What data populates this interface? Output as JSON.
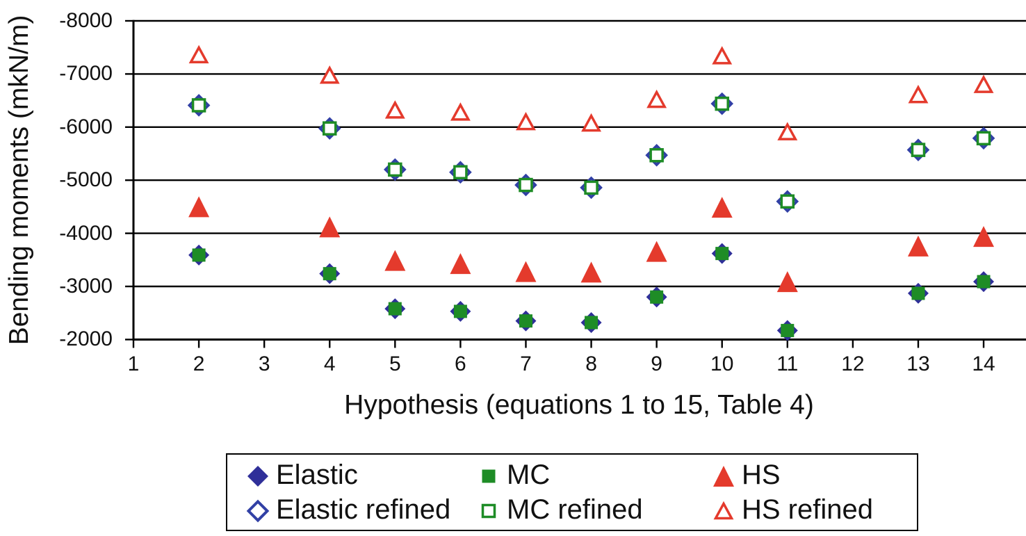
{
  "page": {
    "background": "#ffffff"
  },
  "y_axis": {
    "title": "Bending moments (mkN/m)",
    "tick_labels": [
      "-8000",
      "-7000",
      "-6000",
      "-5000",
      "-4000",
      "-3000",
      "-2000"
    ]
  },
  "x_axis": {
    "title": "Hypothesis (equations 1 to 15, Table 4)",
    "tick_labels": [
      "1",
      "2",
      "3",
      "4",
      "5",
      "6",
      "7",
      "8",
      "9",
      "10",
      "11",
      "12",
      "13",
      "14"
    ]
  },
  "legend": {
    "items": [
      {
        "label": "Elastic"
      },
      {
        "label": "MC"
      },
      {
        "label": "HS"
      },
      {
        "label": "Elastic refined"
      },
      {
        "label": "MC refined"
      },
      {
        "label": "HS refined"
      }
    ]
  },
  "chart_data": {
    "type": "scatter",
    "title": "",
    "xlabel": "Hypothesis (equations 1 to 15, Table 4)",
    "ylabel": "Bending moments (mkN/m)",
    "x_ticks": [
      1,
      2,
      3,
      4,
      5,
      6,
      7,
      8,
      9,
      10,
      11,
      12,
      13,
      14
    ],
    "y_ticks": [
      -8000,
      -7000,
      -6000,
      -5000,
      -4000,
      -3000,
      -2000
    ],
    "ylim": [
      -8000,
      -2000
    ],
    "y_axis_note": "negative values increase upward (-8000 at top, -2000 at bottom)",
    "grid": "horizontal",
    "legend_position": "bottom",
    "x": [
      2,
      4,
      5,
      6,
      7,
      8,
      9,
      10,
      11,
      13,
      14
    ],
    "series": [
      {
        "name": "Elastic",
        "marker": "diamond",
        "fill": "solid",
        "color": "#2F2F99",
        "values": [
          -3590,
          -3240,
          -2580,
          -2530,
          -2350,
          -2320,
          -2800,
          -3620,
          -2170,
          -2870,
          -3090
        ]
      },
      {
        "name": "MC",
        "marker": "square",
        "fill": "solid",
        "color": "#1E8C26",
        "values": [
          -3590,
          -3240,
          -2580,
          -2530,
          -2350,
          -2320,
          -2800,
          -3620,
          -2170,
          -2870,
          -3090
        ]
      },
      {
        "name": "HS",
        "marker": "triangle",
        "fill": "solid",
        "color": "#E43A2C",
        "values": [
          -4500,
          -4120,
          -3490,
          -3430,
          -3280,
          -3270,
          -3660,
          -4490,
          -3090,
          -3760,
          -3940
        ]
      },
      {
        "name": "Elastic refined",
        "marker": "diamond",
        "fill": "hollow",
        "color": "#3140A5",
        "values": [
          -6410,
          -5975,
          -5200,
          -5150,
          -4910,
          -4860,
          -5470,
          -6440,
          -4600,
          -5570,
          -5790
        ]
      },
      {
        "name": "MC refined",
        "marker": "square",
        "fill": "hollow",
        "color": "#1E8C26",
        "values": [
          -6410,
          -5975,
          -5200,
          -5150,
          -4910,
          -4860,
          -5470,
          -6440,
          -4600,
          -5570,
          -5790
        ]
      },
      {
        "name": "HS refined",
        "marker": "triangle",
        "fill": "hollow",
        "color": "#E43A2C",
        "values": [
          -7360,
          -6975,
          -6320,
          -6280,
          -6100,
          -6075,
          -6520,
          -7340,
          -5910,
          -6610,
          -6800
        ]
      }
    ]
  }
}
